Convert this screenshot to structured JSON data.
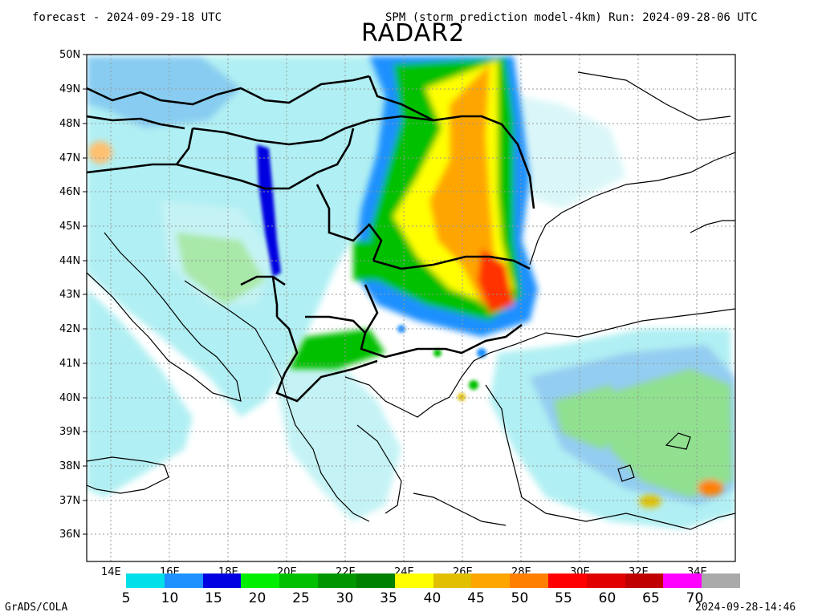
{
  "header": {
    "forecast": "forecast - 2024-09-29-18 UTC",
    "model_run": "SPM (storm prediction model-4km) Run: 2024-09-28-06 UTC",
    "product": "RADAR2"
  },
  "axes": {
    "lat_labels": [
      "50N",
      "49N",
      "48N",
      "47N",
      "46N",
      "45N",
      "44N",
      "43N",
      "42N",
      "41N",
      "40N",
      "39N",
      "38N",
      "37N",
      "36N"
    ],
    "lon_labels": [
      "14E",
      "16E",
      "18E",
      "20E",
      "22E",
      "24E",
      "26E",
      "28E",
      "30E",
      "32E",
      "34E"
    ]
  },
  "colorbar": {
    "colors": [
      "#00e0e8",
      "#1e90ff",
      "#0000e0",
      "#00ee00",
      "#00c000",
      "#009600",
      "#008000",
      "#ffff00",
      "#e0c000",
      "#ffa500",
      "#ff7f00",
      "#ff0000",
      "#e00000",
      "#c00000",
      "#ff00ff",
      "#aaaaaa"
    ],
    "labels": [
      "5",
      "10",
      "15",
      "20",
      "25",
      "30",
      "35",
      "40",
      "45",
      "50",
      "55",
      "60",
      "65",
      "70"
    ]
  },
  "footer": {
    "credit": "GrADS/COLA",
    "timestamp": "2024-09-28-14:46"
  }
}
